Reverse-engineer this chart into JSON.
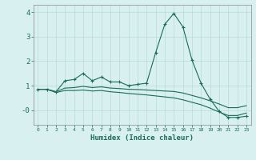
{
  "x": [
    0,
    1,
    2,
    3,
    4,
    5,
    6,
    7,
    8,
    9,
    10,
    11,
    12,
    13,
    14,
    15,
    16,
    17,
    18,
    19,
    20,
    21,
    22,
    23
  ],
  "y_main": [
    0.85,
    0.85,
    0.75,
    1.2,
    1.25,
    1.5,
    1.2,
    1.35,
    1.15,
    1.15,
    1.0,
    1.05,
    1.1,
    2.35,
    3.5,
    3.95,
    3.4,
    2.05,
    1.1,
    0.45,
    -0.05,
    -0.3,
    -0.3,
    -0.25
  ],
  "y_upper": [
    0.85,
    0.85,
    0.75,
    0.9,
    0.92,
    0.97,
    0.92,
    0.95,
    0.9,
    0.88,
    0.85,
    0.84,
    0.82,
    0.8,
    0.78,
    0.76,
    0.7,
    0.6,
    0.5,
    0.38,
    0.25,
    0.1,
    0.1,
    0.18
  ],
  "y_lower": [
    0.85,
    0.85,
    0.72,
    0.8,
    0.8,
    0.82,
    0.78,
    0.8,
    0.75,
    0.72,
    0.68,
    0.65,
    0.62,
    0.58,
    0.54,
    0.5,
    0.42,
    0.32,
    0.22,
    0.08,
    -0.08,
    -0.22,
    -0.22,
    -0.12
  ],
  "line_color": "#1a6b5a",
  "bg_color": "#d8f0f0",
  "grid_color": "#b8dada",
  "xlabel": "Humidex (Indice chaleur)",
  "ylim": [
    -0.6,
    4.3
  ],
  "xlim": [
    -0.5,
    23.5
  ],
  "yticks": [
    0,
    1,
    2,
    3,
    4
  ],
  "ytick_labels": [
    "-0",
    "1",
    "2",
    "3",
    "4"
  ],
  "xticks": [
    0,
    1,
    2,
    3,
    4,
    5,
    6,
    7,
    8,
    9,
    10,
    11,
    12,
    13,
    14,
    15,
    16,
    17,
    18,
    19,
    20,
    21,
    22,
    23
  ]
}
